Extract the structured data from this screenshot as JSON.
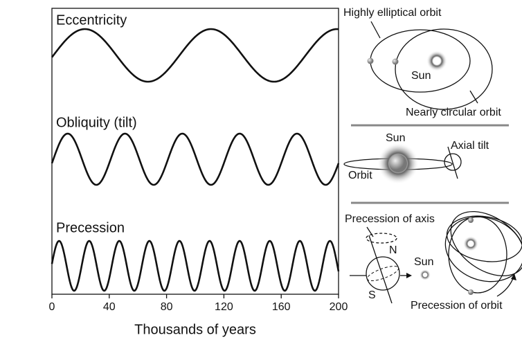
{
  "chart_data": {
    "type": "line",
    "xlabel": "Thousands of years",
    "xlim": [
      0,
      200
    ],
    "xticks": [
      0,
      40,
      80,
      120,
      160,
      200
    ],
    "series": [
      {
        "name": "Eccentricity",
        "color": "#111111",
        "period": 88,
        "peak": 23
      },
      {
        "name": "Obliquity (tilt)",
        "color": "#111111",
        "period": 40,
        "peak": 11
      },
      {
        "name": "Precession",
        "color": "#111111",
        "period": 21,
        "peak": 5
      }
    ]
  },
  "diagram": {
    "eccentricity": {
      "elliptical": "Highly elliptical orbit",
      "sun": "Sun",
      "circular": "Nearly circular orbit"
    },
    "obliquity": {
      "sun": "Sun",
      "tilt": "Axial tilt",
      "orbit": "Orbit"
    },
    "precession": {
      "axis": "Precession of axis",
      "north": "N",
      "south": "S",
      "sun": "Sun",
      "orbit": "Precession of orbit"
    }
  }
}
